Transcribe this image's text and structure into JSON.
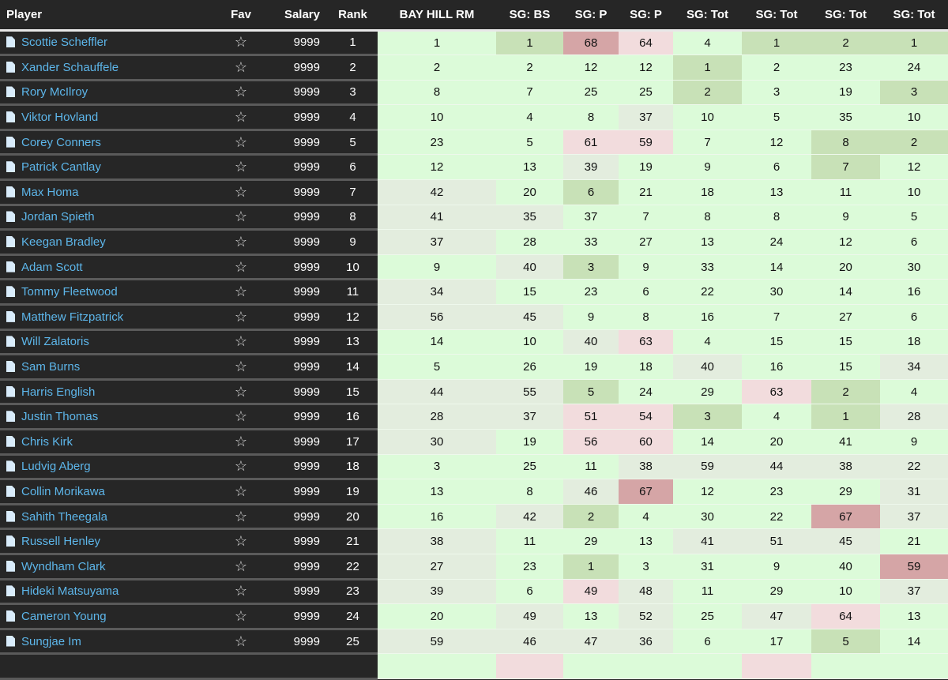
{
  "headers": {
    "player": "Player",
    "fav": "Fav",
    "salary": "Salary",
    "rank": "Rank",
    "cols": [
      "BAY HILL RM",
      "SG: BS",
      "SG: P",
      "SG: P",
      "SG: Tot",
      "SG: Tot",
      "SG: Tot",
      "SG: Tot"
    ]
  },
  "colors": {
    "L": "#dcfbd9",
    "G": "#c8e1b7",
    "N": "#e3edde",
    "P": "#f2dcdd",
    "R": "#d5a5a6"
  },
  "fav_icon": "star-outline-icon",
  "player_icon": "document-icon",
  "rows": [
    {
      "name": "Scottie Scheffler",
      "salary": "9999",
      "rank": "1",
      "vals": [
        "1",
        "1",
        "68",
        "64",
        "4",
        "1",
        "2",
        "1"
      ],
      "shade": "LGRPLGGG"
    },
    {
      "name": "Xander Schauffele",
      "salary": "9999",
      "rank": "2",
      "vals": [
        "2",
        "2",
        "12",
        "12",
        "1",
        "2",
        "23",
        "24"
      ],
      "shade": "LLLLGLLL"
    },
    {
      "name": "Rory McIlroy",
      "salary": "9999",
      "rank": "3",
      "vals": [
        "8",
        "7",
        "25",
        "25",
        "2",
        "3",
        "19",
        "3"
      ],
      "shade": "LLLLGLLG"
    },
    {
      "name": "Viktor Hovland",
      "salary": "9999",
      "rank": "4",
      "vals": [
        "10",
        "4",
        "8",
        "37",
        "10",
        "5",
        "35",
        "10"
      ],
      "shade": "LLLNLLLL"
    },
    {
      "name": "Corey Conners",
      "salary": "9999",
      "rank": "5",
      "vals": [
        "23",
        "5",
        "61",
        "59",
        "7",
        "12",
        "8",
        "2"
      ],
      "shade": "LLPPLLGG"
    },
    {
      "name": "Patrick Cantlay",
      "salary": "9999",
      "rank": "6",
      "vals": [
        "12",
        "13",
        "39",
        "19",
        "9",
        "6",
        "7",
        "12"
      ],
      "shade": "LLNLLLGL"
    },
    {
      "name": "Max Homa",
      "salary": "9999",
      "rank": "7",
      "vals": [
        "42",
        "20",
        "6",
        "21",
        "18",
        "13",
        "11",
        "10"
      ],
      "shade": "NLGLLLLL"
    },
    {
      "name": "Jordan Spieth",
      "salary": "9999",
      "rank": "8",
      "vals": [
        "41",
        "35",
        "37",
        "7",
        "8",
        "8",
        "9",
        "5"
      ],
      "shade": "NNLLLLLL"
    },
    {
      "name": "Keegan Bradley",
      "salary": "9999",
      "rank": "9",
      "vals": [
        "37",
        "28",
        "33",
        "27",
        "13",
        "24",
        "12",
        "6"
      ],
      "shade": "NLLLLLLL"
    },
    {
      "name": "Adam Scott",
      "salary": "9999",
      "rank": "10",
      "vals": [
        "9",
        "40",
        "3",
        "9",
        "33",
        "14",
        "20",
        "30"
      ],
      "shade": "LNGLLLLL"
    },
    {
      "name": "Tommy Fleetwood",
      "salary": "9999",
      "rank": "11",
      "vals": [
        "34",
        "15",
        "23",
        "6",
        "22",
        "30",
        "14",
        "16"
      ],
      "shade": "NLLLLLLL"
    },
    {
      "name": "Matthew Fitzpatrick",
      "salary": "9999",
      "rank": "12",
      "vals": [
        "56",
        "45",
        "9",
        "8",
        "16",
        "7",
        "27",
        "6"
      ],
      "shade": "NNLLLLLL"
    },
    {
      "name": "Will Zalatoris",
      "salary": "9999",
      "rank": "13",
      "vals": [
        "14",
        "10",
        "40",
        "63",
        "4",
        "15",
        "15",
        "18"
      ],
      "shade": "LLNPLLLL"
    },
    {
      "name": "Sam Burns",
      "salary": "9999",
      "rank": "14",
      "vals": [
        "5",
        "26",
        "19",
        "18",
        "40",
        "16",
        "15",
        "34"
      ],
      "shade": "LLLLNLLN"
    },
    {
      "name": "Harris English",
      "salary": "9999",
      "rank": "15",
      "vals": [
        "44",
        "55",
        "5",
        "24",
        "29",
        "63",
        "2",
        "4"
      ],
      "shade": "NNGLLPGL"
    },
    {
      "name": "Justin Thomas",
      "salary": "9999",
      "rank": "16",
      "vals": [
        "28",
        "37",
        "51",
        "54",
        "3",
        "4",
        "1",
        "28"
      ],
      "shade": "NNPPGLGN"
    },
    {
      "name": "Chris Kirk",
      "salary": "9999",
      "rank": "17",
      "vals": [
        "30",
        "19",
        "56",
        "60",
        "14",
        "20",
        "41",
        "9"
      ],
      "shade": "NLPPLLLL"
    },
    {
      "name": "Ludvig Aberg",
      "salary": "9999",
      "rank": "18",
      "vals": [
        "3",
        "25",
        "11",
        "38",
        "59",
        "44",
        "38",
        "22"
      ],
      "shade": "LLLNNNNN"
    },
    {
      "name": "Collin Morikawa",
      "salary": "9999",
      "rank": "19",
      "vals": [
        "13",
        "8",
        "46",
        "67",
        "12",
        "23",
        "29",
        "31"
      ],
      "shade": "LLNRLLLN"
    },
    {
      "name": "Sahith Theegala",
      "salary": "9999",
      "rank": "20",
      "vals": [
        "16",
        "42",
        "2",
        "4",
        "30",
        "22",
        "67",
        "37"
      ],
      "shade": "LNGLLLRN"
    },
    {
      "name": "Russell Henley",
      "salary": "9999",
      "rank": "21",
      "vals": [
        "38",
        "11",
        "29",
        "13",
        "41",
        "51",
        "45",
        "21"
      ],
      "shade": "NLLLNNNL"
    },
    {
      "name": "Wyndham Clark",
      "salary": "9999",
      "rank": "22",
      "vals": [
        "27",
        "23",
        "1",
        "3",
        "31",
        "9",
        "40",
        "59"
      ],
      "shade": "NLGLLLLR"
    },
    {
      "name": "Hideki Matsuyama",
      "salary": "9999",
      "rank": "23",
      "vals": [
        "39",
        "6",
        "49",
        "48",
        "11",
        "29",
        "10",
        "37"
      ],
      "shade": "NLPNLLLN"
    },
    {
      "name": "Cameron Young",
      "salary": "9999",
      "rank": "24",
      "vals": [
        "20",
        "49",
        "13",
        "52",
        "25",
        "47",
        "64",
        "13"
      ],
      "shade": "LNLNLNPL"
    },
    {
      "name": "Sungjae Im",
      "salary": "9999",
      "rank": "25",
      "vals": [
        "59",
        "46",
        "47",
        "36",
        "6",
        "17",
        "5",
        "14"
      ],
      "shade": "NNNNLLGL"
    }
  ]
}
